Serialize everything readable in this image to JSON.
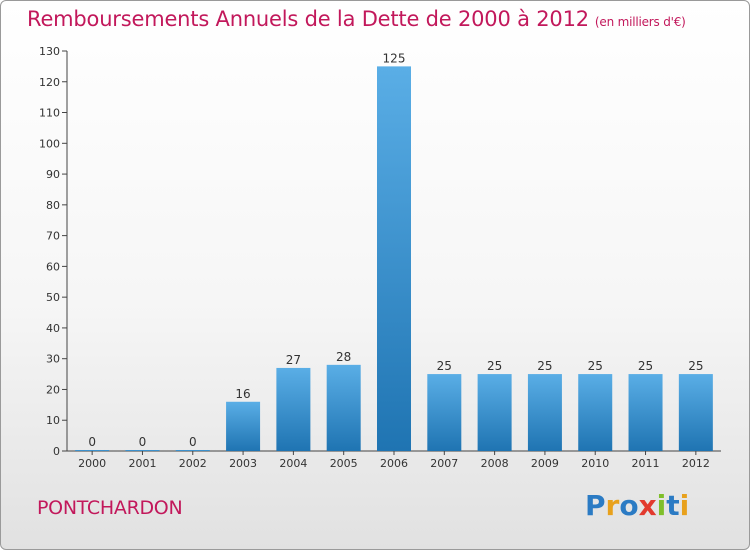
{
  "header": {
    "title": "Remboursements Annuels de la Dette de 2000 à 2012",
    "unit": "(en milliers d'€)"
  },
  "footer": {
    "location": "PONTCHARDON",
    "brand": {
      "letters": [
        "P",
        "r",
        "o",
        "x",
        "i",
        "t",
        "i"
      ],
      "colors": [
        "#2b7bc4",
        "#e8a11c",
        "#2b7bc4",
        "#e23a2e",
        "#7fbf2a",
        "#2b7bc4",
        "#e8a11c"
      ]
    }
  },
  "colors": {
    "bar_top": "#5aaee6",
    "bar_bottom": "#1f74b2",
    "title": "#c2185b"
  },
  "chart_data": {
    "type": "bar",
    "title": "Remboursements Annuels de la Dette de 2000 à 2012",
    "categories": [
      "2000",
      "2001",
      "2002",
      "2003",
      "2004",
      "2005",
      "2006",
      "2007",
      "2008",
      "2009",
      "2010",
      "2011",
      "2012"
    ],
    "values": [
      0,
      0,
      0,
      16,
      27,
      28,
      125,
      25,
      25,
      25,
      25,
      25,
      25
    ],
    "data_labels": [
      "0",
      "0",
      "0",
      "16",
      "27",
      "28",
      "125",
      "25",
      "25",
      "25",
      "25",
      "25",
      "25"
    ],
    "ylim": [
      0,
      130
    ],
    "yticks": [
      0,
      10,
      20,
      30,
      40,
      50,
      60,
      70,
      80,
      90,
      100,
      110,
      120,
      130
    ],
    "grid": false,
    "legend": "none"
  }
}
